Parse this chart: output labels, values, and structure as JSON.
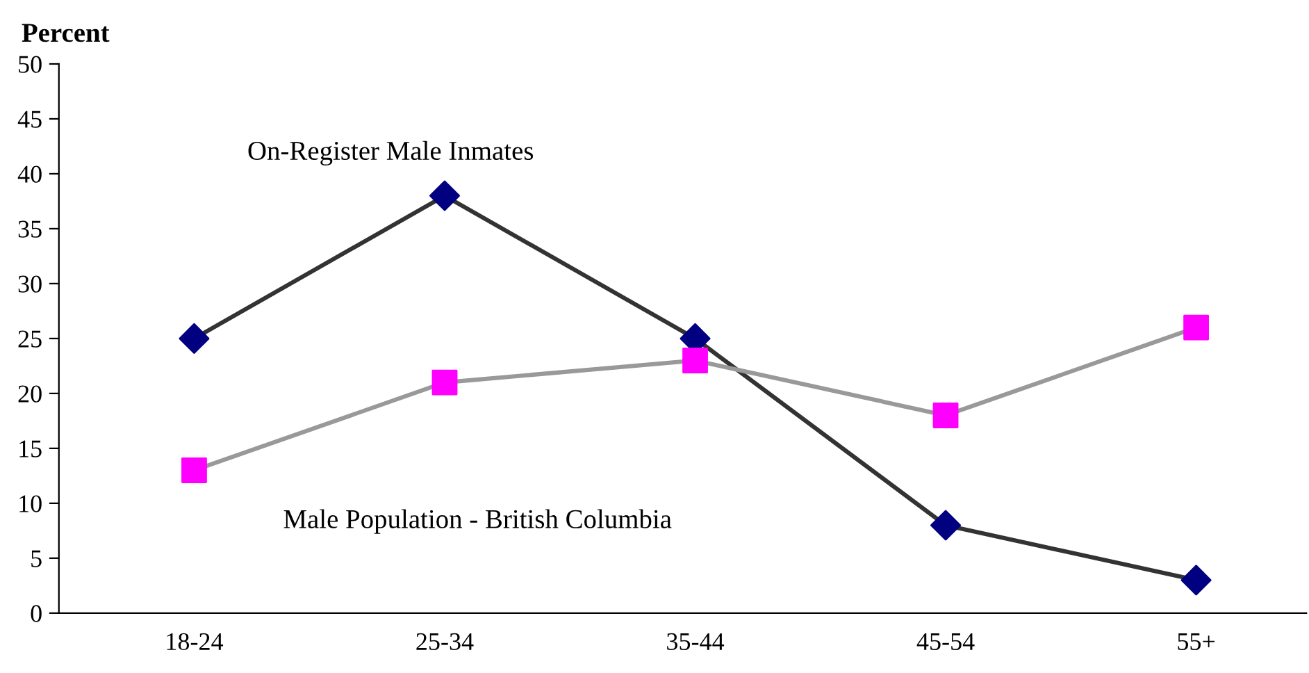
{
  "chart_data": {
    "type": "line",
    "ylabel": "Percent",
    "categories": [
      "18-24",
      "25-34",
      "35-44",
      "45-54",
      "55+"
    ],
    "series": [
      {
        "name": "On-Register Male Inmates",
        "color": "#333333",
        "colors": [
          "#000080",
          "#000080",
          "#000080",
          "#000080",
          "#000080"
        ],
        "marker": "diamond",
        "values": [
          25,
          38,
          25,
          8,
          3
        ]
      },
      {
        "name": "Male Population - British Columbia",
        "color": "#999999",
        "colors": [
          "#ff00ff",
          "#ff00ff",
          "#ff00ff",
          "#ff00ff",
          "#ff00ff"
        ],
        "marker": "square",
        "values": [
          13,
          21,
          23,
          18,
          26
        ]
      }
    ],
    "ylim": [
      0,
      50
    ],
    "yticks": [
      0,
      5,
      10,
      15,
      20,
      25,
      30,
      35,
      40,
      45,
      50
    ],
    "grid": false,
    "legend": false
  }
}
